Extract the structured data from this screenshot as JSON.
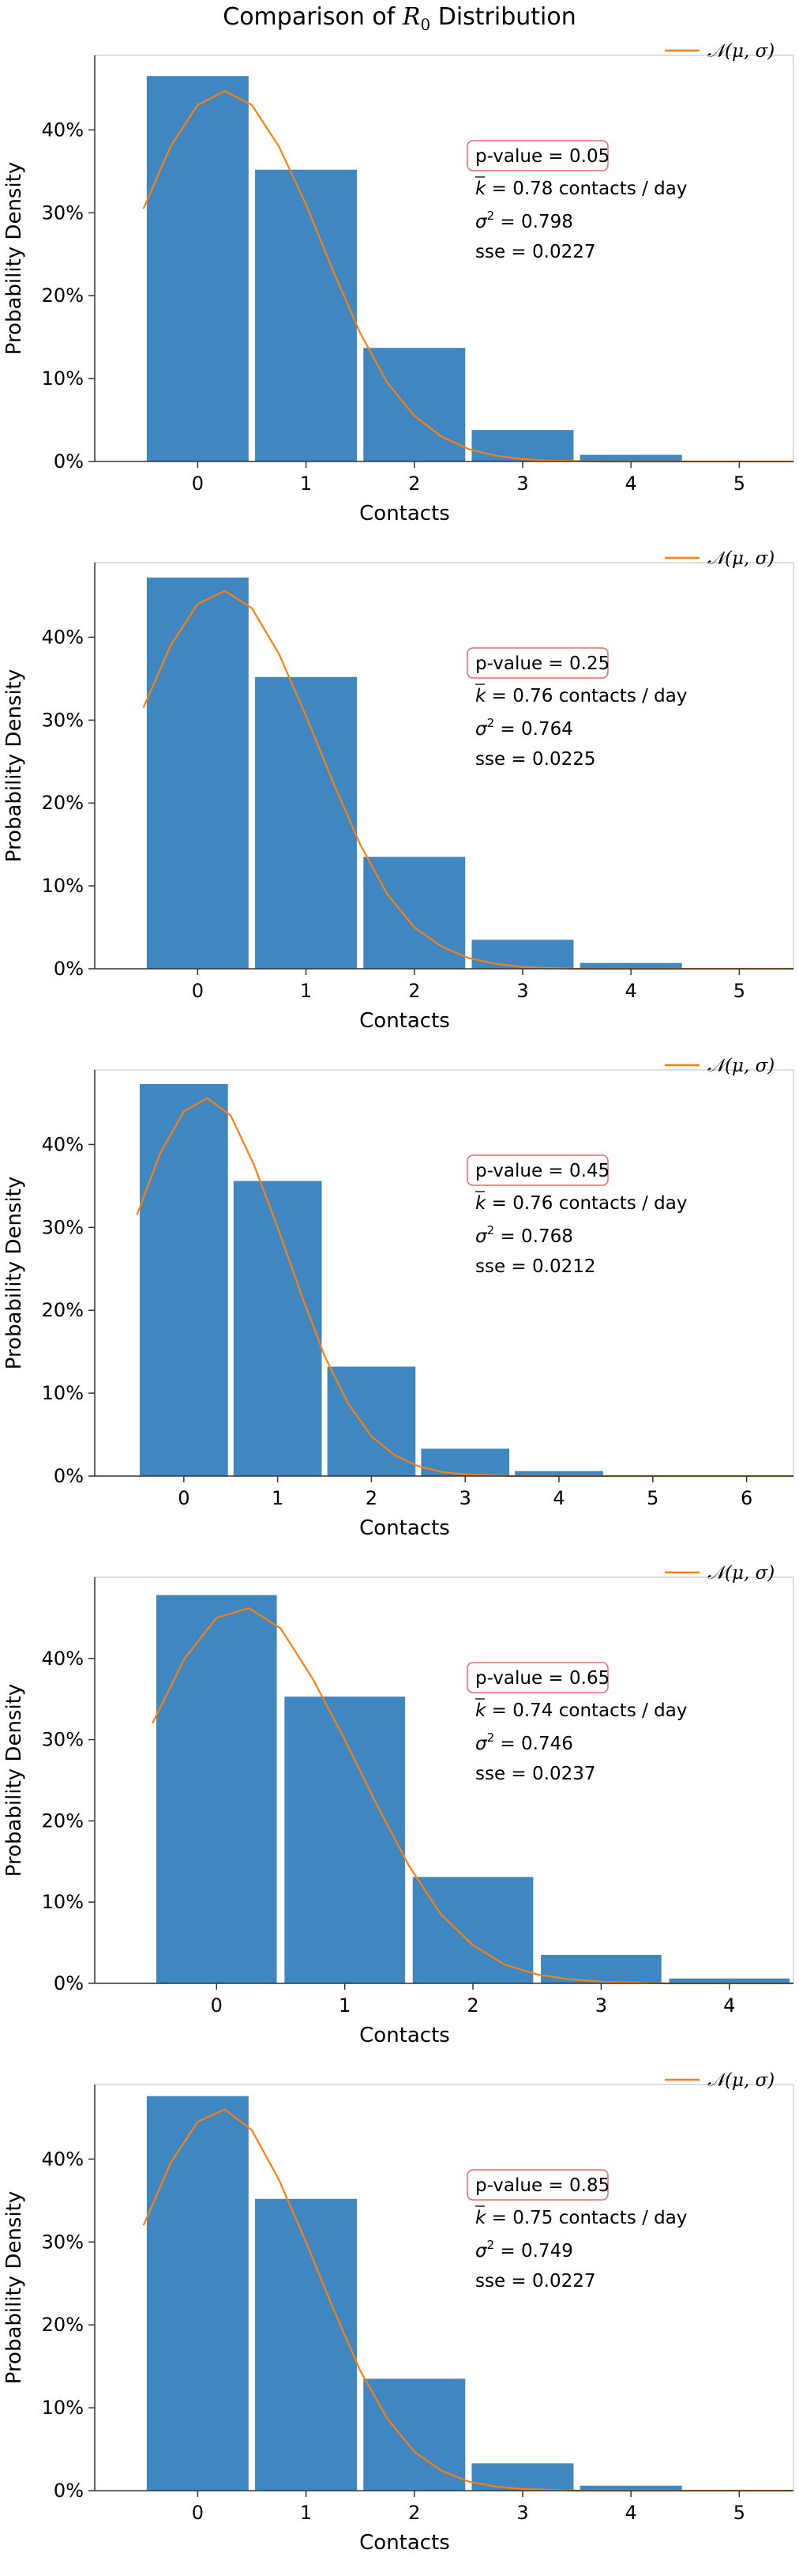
{
  "figure": {
    "title_prefix": "Comparison of ",
    "title_symbol": "R",
    "title_sub": "0",
    "title_suffix": " Distribution"
  },
  "colors": {
    "bar": "#3f87c0",
    "fit_line": "#ff7f0e",
    "pvalue_border": "#e86a6a",
    "axes": "#333333"
  },
  "chart_data": [
    {
      "type": "bar",
      "xlabel": "Contacts",
      "ylabel": "Probability Density",
      "categories": [
        0,
        1,
        2,
        3,
        4,
        5
      ],
      "values": [
        0.465,
        0.352,
        0.137,
        0.038,
        0.008,
        0.0
      ],
      "x_ticks": [
        0,
        1,
        2,
        3,
        4,
        5
      ],
      "xlim": [
        -0.95,
        5.5
      ],
      "y_ticks": [
        0,
        0.1,
        0.2,
        0.3,
        0.4
      ],
      "y_tick_labels": [
        "0%",
        "10%",
        "20%",
        "30%",
        "40%"
      ],
      "ylim": [
        0,
        0.49
      ],
      "legend": {
        "label": "𝒩(μ, σ)",
        "placement": "top-right"
      },
      "fit_line": {
        "x": [
          -0.5,
          -0.25,
          0.0,
          0.25,
          0.5,
          0.75,
          1.0,
          1.25,
          1.5,
          1.75,
          2.0,
          2.25,
          2.5,
          2.75,
          3.0,
          3.25,
          3.5,
          3.75,
          4.0,
          4.5,
          5.0,
          5.5
        ],
        "y": [
          0.305,
          0.38,
          0.43,
          0.447,
          0.43,
          0.38,
          0.31,
          0.23,
          0.155,
          0.095,
          0.055,
          0.03,
          0.015,
          0.007,
          0.003,
          0.001,
          0.0005,
          0.0,
          0.0,
          0.0,
          0.0,
          0.0
        ]
      },
      "stats": {
        "pvalue": "p-value = 0.05",
        "k_value": " = 0.78 contacts / day",
        "sigma_value": " = 0.798",
        "sse": "sse = 0.0227"
      }
    },
    {
      "type": "bar",
      "xlabel": "Contacts",
      "ylabel": "Probability Density",
      "categories": [
        0,
        1,
        2,
        3,
        4,
        5
      ],
      "values": [
        0.472,
        0.352,
        0.135,
        0.035,
        0.007,
        0.0
      ],
      "x_ticks": [
        0,
        1,
        2,
        3,
        4,
        5
      ],
      "xlim": [
        -0.95,
        5.5
      ],
      "y_ticks": [
        0,
        0.1,
        0.2,
        0.3,
        0.4
      ],
      "y_tick_labels": [
        "0%",
        "10%",
        "20%",
        "30%",
        "40%"
      ],
      "ylim": [
        0,
        0.49
      ],
      "legend": {
        "label": "𝒩(μ, σ)",
        "placement": "top-right"
      },
      "fit_line": {
        "x": [
          -0.5,
          -0.25,
          0.0,
          0.25,
          0.5,
          0.75,
          1.0,
          1.25,
          1.5,
          1.75,
          2.0,
          2.25,
          2.5,
          2.75,
          3.0,
          3.25,
          3.5,
          3.75,
          4.0,
          4.5,
          5.0,
          5.5
        ],
        "y": [
          0.315,
          0.39,
          0.44,
          0.456,
          0.435,
          0.38,
          0.305,
          0.225,
          0.15,
          0.09,
          0.05,
          0.027,
          0.013,
          0.006,
          0.002,
          0.001,
          0.0,
          0.0,
          0.0,
          0.0,
          0.0,
          0.0
        ]
      },
      "stats": {
        "pvalue": "p-value = 0.25",
        "k_value": " = 0.76 contacts / day",
        "sigma_value": " = 0.764",
        "sse": "sse = 0.0225"
      }
    },
    {
      "type": "bar",
      "xlabel": "Contacts",
      "ylabel": "Probability Density",
      "categories": [
        0,
        1,
        2,
        3,
        4,
        5,
        6
      ],
      "values": [
        0.473,
        0.356,
        0.132,
        0.033,
        0.006,
        0.0,
        0.0
      ],
      "x_ticks": [
        0,
        1,
        2,
        3,
        4,
        5,
        6
      ],
      "xlim": [
        -0.95,
        6.5
      ],
      "y_ticks": [
        0,
        0.1,
        0.2,
        0.3,
        0.4
      ],
      "y_tick_labels": [
        "0%",
        "10%",
        "20%",
        "30%",
        "40%"
      ],
      "ylim": [
        0,
        0.49
      ],
      "legend": {
        "label": "𝒩(μ, σ)",
        "placement": "top-right"
      },
      "fit_line": {
        "x": [
          -0.5,
          -0.25,
          0.0,
          0.25,
          0.5,
          0.75,
          1.0,
          1.25,
          1.5,
          1.75,
          2.0,
          2.25,
          2.5,
          2.75,
          3.0,
          3.25,
          3.5,
          4.0,
          4.5,
          5.0,
          5.5,
          6.0,
          6.5
        ],
        "y": [
          0.315,
          0.39,
          0.44,
          0.456,
          0.435,
          0.375,
          0.3,
          0.22,
          0.145,
          0.088,
          0.048,
          0.025,
          0.012,
          0.005,
          0.002,
          0.001,
          0.0,
          0.0,
          0.0,
          0.0,
          0.0,
          0.0,
          0.0
        ]
      },
      "stats": {
        "pvalue": "p-value = 0.45",
        "k_value": " = 0.76 contacts / day",
        "sigma_value": " = 0.768",
        "sse": "sse = 0.0212"
      }
    },
    {
      "type": "bar",
      "xlabel": "Contacts",
      "ylabel": "Probability Density",
      "categories": [
        0,
        1,
        2,
        3,
        4
      ],
      "values": [
        0.478,
        0.353,
        0.131,
        0.035,
        0.006
      ],
      "x_ticks": [
        0,
        1,
        2,
        3,
        4
      ],
      "xlim": [
        -0.95,
        4.5
      ],
      "y_ticks": [
        0,
        0.1,
        0.2,
        0.3,
        0.4
      ],
      "y_tick_labels": [
        "0%",
        "10%",
        "20%",
        "30%",
        "40%"
      ],
      "ylim": [
        0,
        0.5
      ],
      "legend": {
        "label": "𝒩(μ, σ)",
        "placement": "top-right"
      },
      "fit_line": {
        "x": [
          -0.5,
          -0.25,
          0.0,
          0.25,
          0.5,
          0.75,
          1.0,
          1.25,
          1.5,
          1.75,
          2.0,
          2.25,
          2.5,
          2.75,
          3.0,
          3.25,
          3.5,
          3.75,
          4.0,
          4.25,
          4.5
        ],
        "y": [
          0.32,
          0.4,
          0.45,
          0.462,
          0.437,
          0.375,
          0.3,
          0.22,
          0.145,
          0.085,
          0.047,
          0.023,
          0.011,
          0.005,
          0.002,
          0.001,
          0.0,
          0.0,
          0.0,
          0.0,
          0.0
        ]
      },
      "stats": {
        "pvalue": "p-value = 0.65",
        "k_value": " = 0.74 contacts / day",
        "sigma_value": " = 0.746",
        "sse": "sse = 0.0237"
      }
    },
    {
      "type": "bar",
      "xlabel": "Contacts",
      "ylabel": "Probability Density",
      "categories": [
        0,
        1,
        2,
        3,
        4,
        5
      ],
      "values": [
        0.476,
        0.352,
        0.135,
        0.033,
        0.006,
        0.0
      ],
      "x_ticks": [
        0,
        1,
        2,
        3,
        4,
        5
      ],
      "xlim": [
        -0.95,
        5.5
      ],
      "y_ticks": [
        0,
        0.1,
        0.2,
        0.3,
        0.4
      ],
      "y_tick_labels": [
        "0%",
        "10%",
        "20%",
        "30%",
        "40%"
      ],
      "ylim": [
        0,
        0.49
      ],
      "legend": {
        "label": "𝒩(μ, σ)",
        "placement": "top-right"
      },
      "fit_line": {
        "x": [
          -0.5,
          -0.25,
          0.0,
          0.25,
          0.5,
          0.75,
          1.0,
          1.25,
          1.5,
          1.75,
          2.0,
          2.25,
          2.5,
          2.75,
          3.0,
          3.25,
          3.5,
          4.0,
          4.5,
          5.0,
          5.5
        ],
        "y": [
          0.32,
          0.395,
          0.445,
          0.46,
          0.435,
          0.375,
          0.3,
          0.22,
          0.145,
          0.087,
          0.047,
          0.024,
          0.011,
          0.005,
          0.002,
          0.001,
          0.0,
          0.0,
          0.0,
          0.0,
          0.0
        ]
      },
      "stats": {
        "pvalue": "p-value = 0.85",
        "k_value": " = 0.75 contacts / day",
        "sigma_value": " = 0.749",
        "sse": "sse = 0.0227"
      }
    }
  ]
}
